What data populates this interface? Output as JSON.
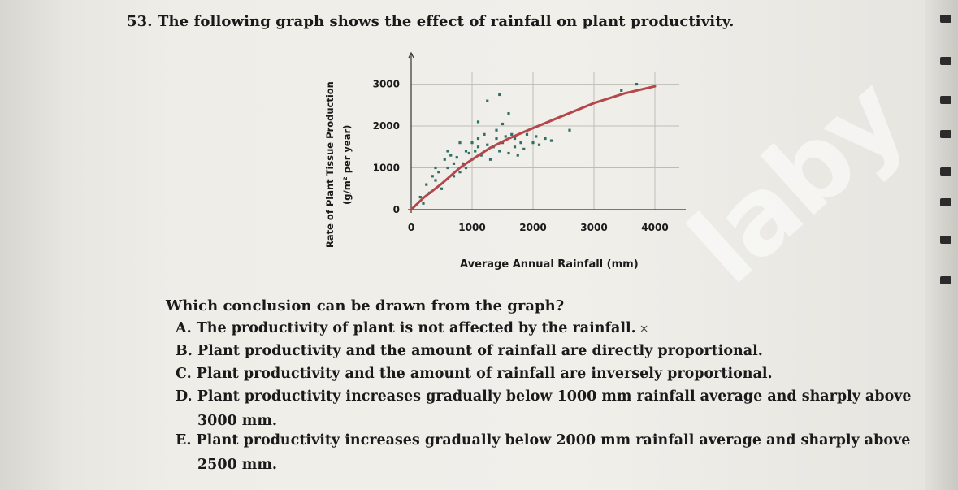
{
  "question": {
    "title": "53. The following graph shows the effect of rainfall on plant productivity.",
    "prompt": "Which conclusion can be drawn from the graph?",
    "options": [
      {
        "label": "A. The productivity of plant is not affected by the rainfall.",
        "mark": "×"
      },
      {
        "label": "B. Plant productivity and the amount of rainfall are directly proportional."
      },
      {
        "label": "C. Plant productivity and the amount of rainfall are inversely proportional."
      },
      {
        "label": "D. Plant productivity increases gradually below 1000 mm rainfall average and sharply above",
        "cont": "3000 mm."
      },
      {
        "label": "E. Plant productivity increases gradually below 2000 mm rainfall average and sharply above",
        "cont": "2500 mm."
      }
    ]
  },
  "watermark": "laby",
  "chart_data": {
    "type": "scatter",
    "title": "",
    "xlabel": "Average Annual Rainfall (mm)",
    "ylabel_line1": "Rate of Plant Tissue Production",
    "ylabel_line2": "(g/m² per year)",
    "x_ticks": [
      "0",
      "1000",
      "2000",
      "3000",
      "4000"
    ],
    "y_ticks": [
      "0",
      "1000",
      "2000",
      "3000"
    ],
    "xlim": [
      0,
      4400
    ],
    "ylim": [
      0,
      3400
    ],
    "grid": true,
    "colors": {
      "points": "#2f6f66",
      "trend": "#b3474a",
      "grid": "#bdbdb8"
    },
    "points": [
      [
        150,
        300
      ],
      [
        200,
        150
      ],
      [
        250,
        600
      ],
      [
        300,
        400
      ],
      [
        350,
        800
      ],
      [
        400,
        700
      ],
      [
        400,
        1000
      ],
      [
        450,
        900
      ],
      [
        500,
        500
      ],
      [
        550,
        1200
      ],
      [
        600,
        1000
      ],
      [
        650,
        1300
      ],
      [
        700,
        800
      ],
      [
        700,
        1100
      ],
      [
        750,
        1250
      ],
      [
        800,
        900
      ],
      [
        850,
        1100
      ],
      [
        900,
        1000
      ],
      [
        900,
        1400
      ],
      [
        950,
        1350
      ],
      [
        1000,
        1200
      ],
      [
        1000,
        1600
      ],
      [
        1050,
        1400
      ],
      [
        1100,
        1700
      ],
      [
        1100,
        1500
      ],
      [
        1150,
        1300
      ],
      [
        1200,
        1800
      ],
      [
        1250,
        1550
      ],
      [
        1300,
        1200
      ],
      [
        1350,
        1500
      ],
      [
        1400,
        1900
      ],
      [
        1400,
        1700
      ],
      [
        1450,
        1400
      ],
      [
        1500,
        2050
      ],
      [
        1500,
        1600
      ],
      [
        1550,
        1750
      ],
      [
        1600,
        1350
      ],
      [
        1650,
        1800
      ],
      [
        1700,
        1500
      ],
      [
        1700,
        1700
      ],
      [
        1750,
        1300
      ],
      [
        1800,
        1600
      ],
      [
        1850,
        1450
      ],
      [
        1900,
        1800
      ],
      [
        2000,
        1600
      ],
      [
        2050,
        1750
      ],
      [
        2200,
        1700
      ],
      [
        2300,
        1650
      ],
      [
        1250,
        2600
      ],
      [
        1450,
        2750
      ],
      [
        1600,
        2300
      ],
      [
        1100,
        2100
      ],
      [
        2600,
        1900
      ],
      [
        3700,
        3000
      ],
      [
        3450,
        2850
      ],
      [
        600,
        1400
      ],
      [
        800,
        1600
      ],
      [
        2100,
        1550
      ]
    ],
    "trend": [
      [
        0,
        0
      ],
      [
        200,
        280
      ],
      [
        500,
        620
      ],
      [
        800,
        1000
      ],
      [
        1000,
        1200
      ],
      [
        1300,
        1480
      ],
      [
        1600,
        1700
      ],
      [
        2000,
        1950
      ],
      [
        2500,
        2250
      ],
      [
        3000,
        2550
      ],
      [
        3500,
        2780
      ],
      [
        4000,
        2950
      ]
    ]
  }
}
